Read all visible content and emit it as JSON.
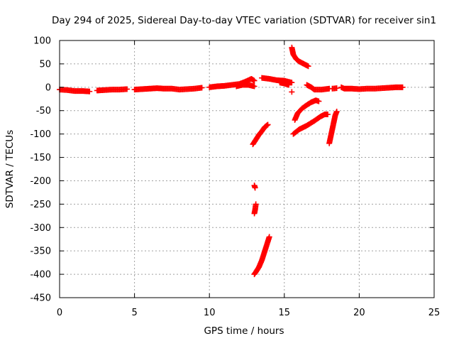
{
  "chart_data": {
    "type": "scatter",
    "title": "Day 294 of 2025, Sidereal Day-to-day VTEC variation (SDTVAR) for receiver sin1",
    "xlabel": "GPS time / hours",
    "ylabel": "SDTVAR / TECUs",
    "xlim": [
      0,
      25
    ],
    "ylim": [
      -450,
      100
    ],
    "x_ticks": [
      0,
      5,
      10,
      15,
      20,
      25
    ],
    "y_ticks": [
      100,
      50,
      0,
      -50,
      -100,
      -150,
      -200,
      -250,
      -300,
      -350,
      -400,
      -450
    ],
    "grid": true,
    "marker": "+",
    "marker_color": "#ff0000",
    "series": [
      {
        "name": "SDTVAR",
        "segments": [
          [
            [
              0.0,
              -5
            ],
            [
              0.5,
              -6
            ],
            [
              1.0,
              -8
            ],
            [
              1.5,
              -8
            ],
            [
              2.0,
              -9
            ]
          ],
          [
            [
              2.5,
              -7
            ],
            [
              3.0,
              -6
            ],
            [
              3.5,
              -5
            ],
            [
              4.0,
              -5
            ],
            [
              4.5,
              -4
            ]
          ],
          [
            [
              5.0,
              -5
            ],
            [
              5.5,
              -4
            ],
            [
              6.0,
              -3
            ],
            [
              6.5,
              -2
            ],
            [
              7.0,
              -3
            ],
            [
              7.5,
              -3
            ],
            [
              8.0,
              -5
            ],
            [
              8.5,
              -4
            ],
            [
              9.0,
              -3
            ],
            [
              9.5,
              -1
            ]
          ],
          [
            [
              10.0,
              0
            ],
            [
              10.5,
              2
            ],
            [
              11.0,
              3
            ],
            [
              11.5,
              5
            ],
            [
              12.0,
              7
            ],
            [
              12.4,
              12
            ],
            [
              12.8,
              18
            ],
            [
              13.0,
              14
            ]
          ],
          [
            [
              11.8,
              2
            ],
            [
              12.2,
              5
            ],
            [
              12.6,
              5
            ],
            [
              13.0,
              2
            ]
          ],
          [
            [
              13.5,
              20
            ],
            [
              14.0,
              18
            ],
            [
              14.5,
              15
            ],
            [
              15.0,
              14
            ],
            [
              15.5,
              10
            ]
          ],
          [
            [
              14.7,
              10
            ],
            [
              15.0,
              8
            ],
            [
              15.3,
              5
            ]
          ],
          [
            [
              15.5,
              85
            ],
            [
              15.6,
              70
            ],
            [
              15.8,
              60
            ],
            [
              16.0,
              55
            ],
            [
              16.3,
              50
            ],
            [
              16.6,
              45
            ]
          ],
          [
            [
              15.5,
              -10
            ]
          ],
          [
            [
              16.5,
              5
            ],
            [
              16.8,
              0
            ],
            [
              17.0,
              -5
            ],
            [
              17.5,
              -5
            ],
            [
              18.0,
              -3
            ]
          ],
          [
            [
              18.2,
              -3
            ],
            [
              18.5,
              -2
            ]
          ],
          [
            [
              18.8,
              0
            ],
            [
              19.0,
              -3
            ],
            [
              19.5,
              -3
            ],
            [
              20.0,
              -4
            ],
            [
              20.5,
              -3
            ],
            [
              21.0,
              -3
            ],
            [
              21.5,
              -2
            ],
            [
              22.0,
              -1
            ],
            [
              22.5,
              0
            ],
            [
              22.9,
              0
            ]
          ],
          [
            [
              15.7,
              -70
            ],
            [
              15.9,
              -55
            ],
            [
              16.2,
              -45
            ],
            [
              16.5,
              -38
            ],
            [
              16.8,
              -32
            ],
            [
              17.1,
              -28
            ],
            [
              17.3,
              -30
            ]
          ],
          [
            [
              15.6,
              -100
            ],
            [
              16.0,
              -90
            ],
            [
              16.5,
              -82
            ],
            [
              17.0,
              -72
            ],
            [
              17.4,
              -63
            ],
            [
              17.7,
              -58
            ],
            [
              17.9,
              -58
            ]
          ],
          [
            [
              18.0,
              -120
            ],
            [
              18.1,
              -105
            ],
            [
              18.2,
              -90
            ],
            [
              18.3,
              -75
            ],
            [
              18.4,
              -60
            ],
            [
              18.5,
              -52
            ]
          ],
          [
            [
              12.9,
              -122
            ],
            [
              13.1,
              -112
            ],
            [
              13.3,
              -102
            ],
            [
              13.5,
              -94
            ],
            [
              13.7,
              -85
            ],
            [
              13.9,
              -80
            ]
          ],
          [
            [
              13.0,
              -210
            ],
            [
              13.05,
              -215
            ]
          ],
          [
            [
              13.0,
              -270
            ],
            [
              13.05,
              -262
            ],
            [
              13.1,
              -250
            ]
          ],
          [
            [
              13.0,
              -400
            ],
            [
              13.3,
              -385
            ],
            [
              13.5,
              -370
            ],
            [
              13.7,
              -350
            ],
            [
              13.9,
              -330
            ],
            [
              14.0,
              -320
            ]
          ]
        ]
      }
    ]
  }
}
